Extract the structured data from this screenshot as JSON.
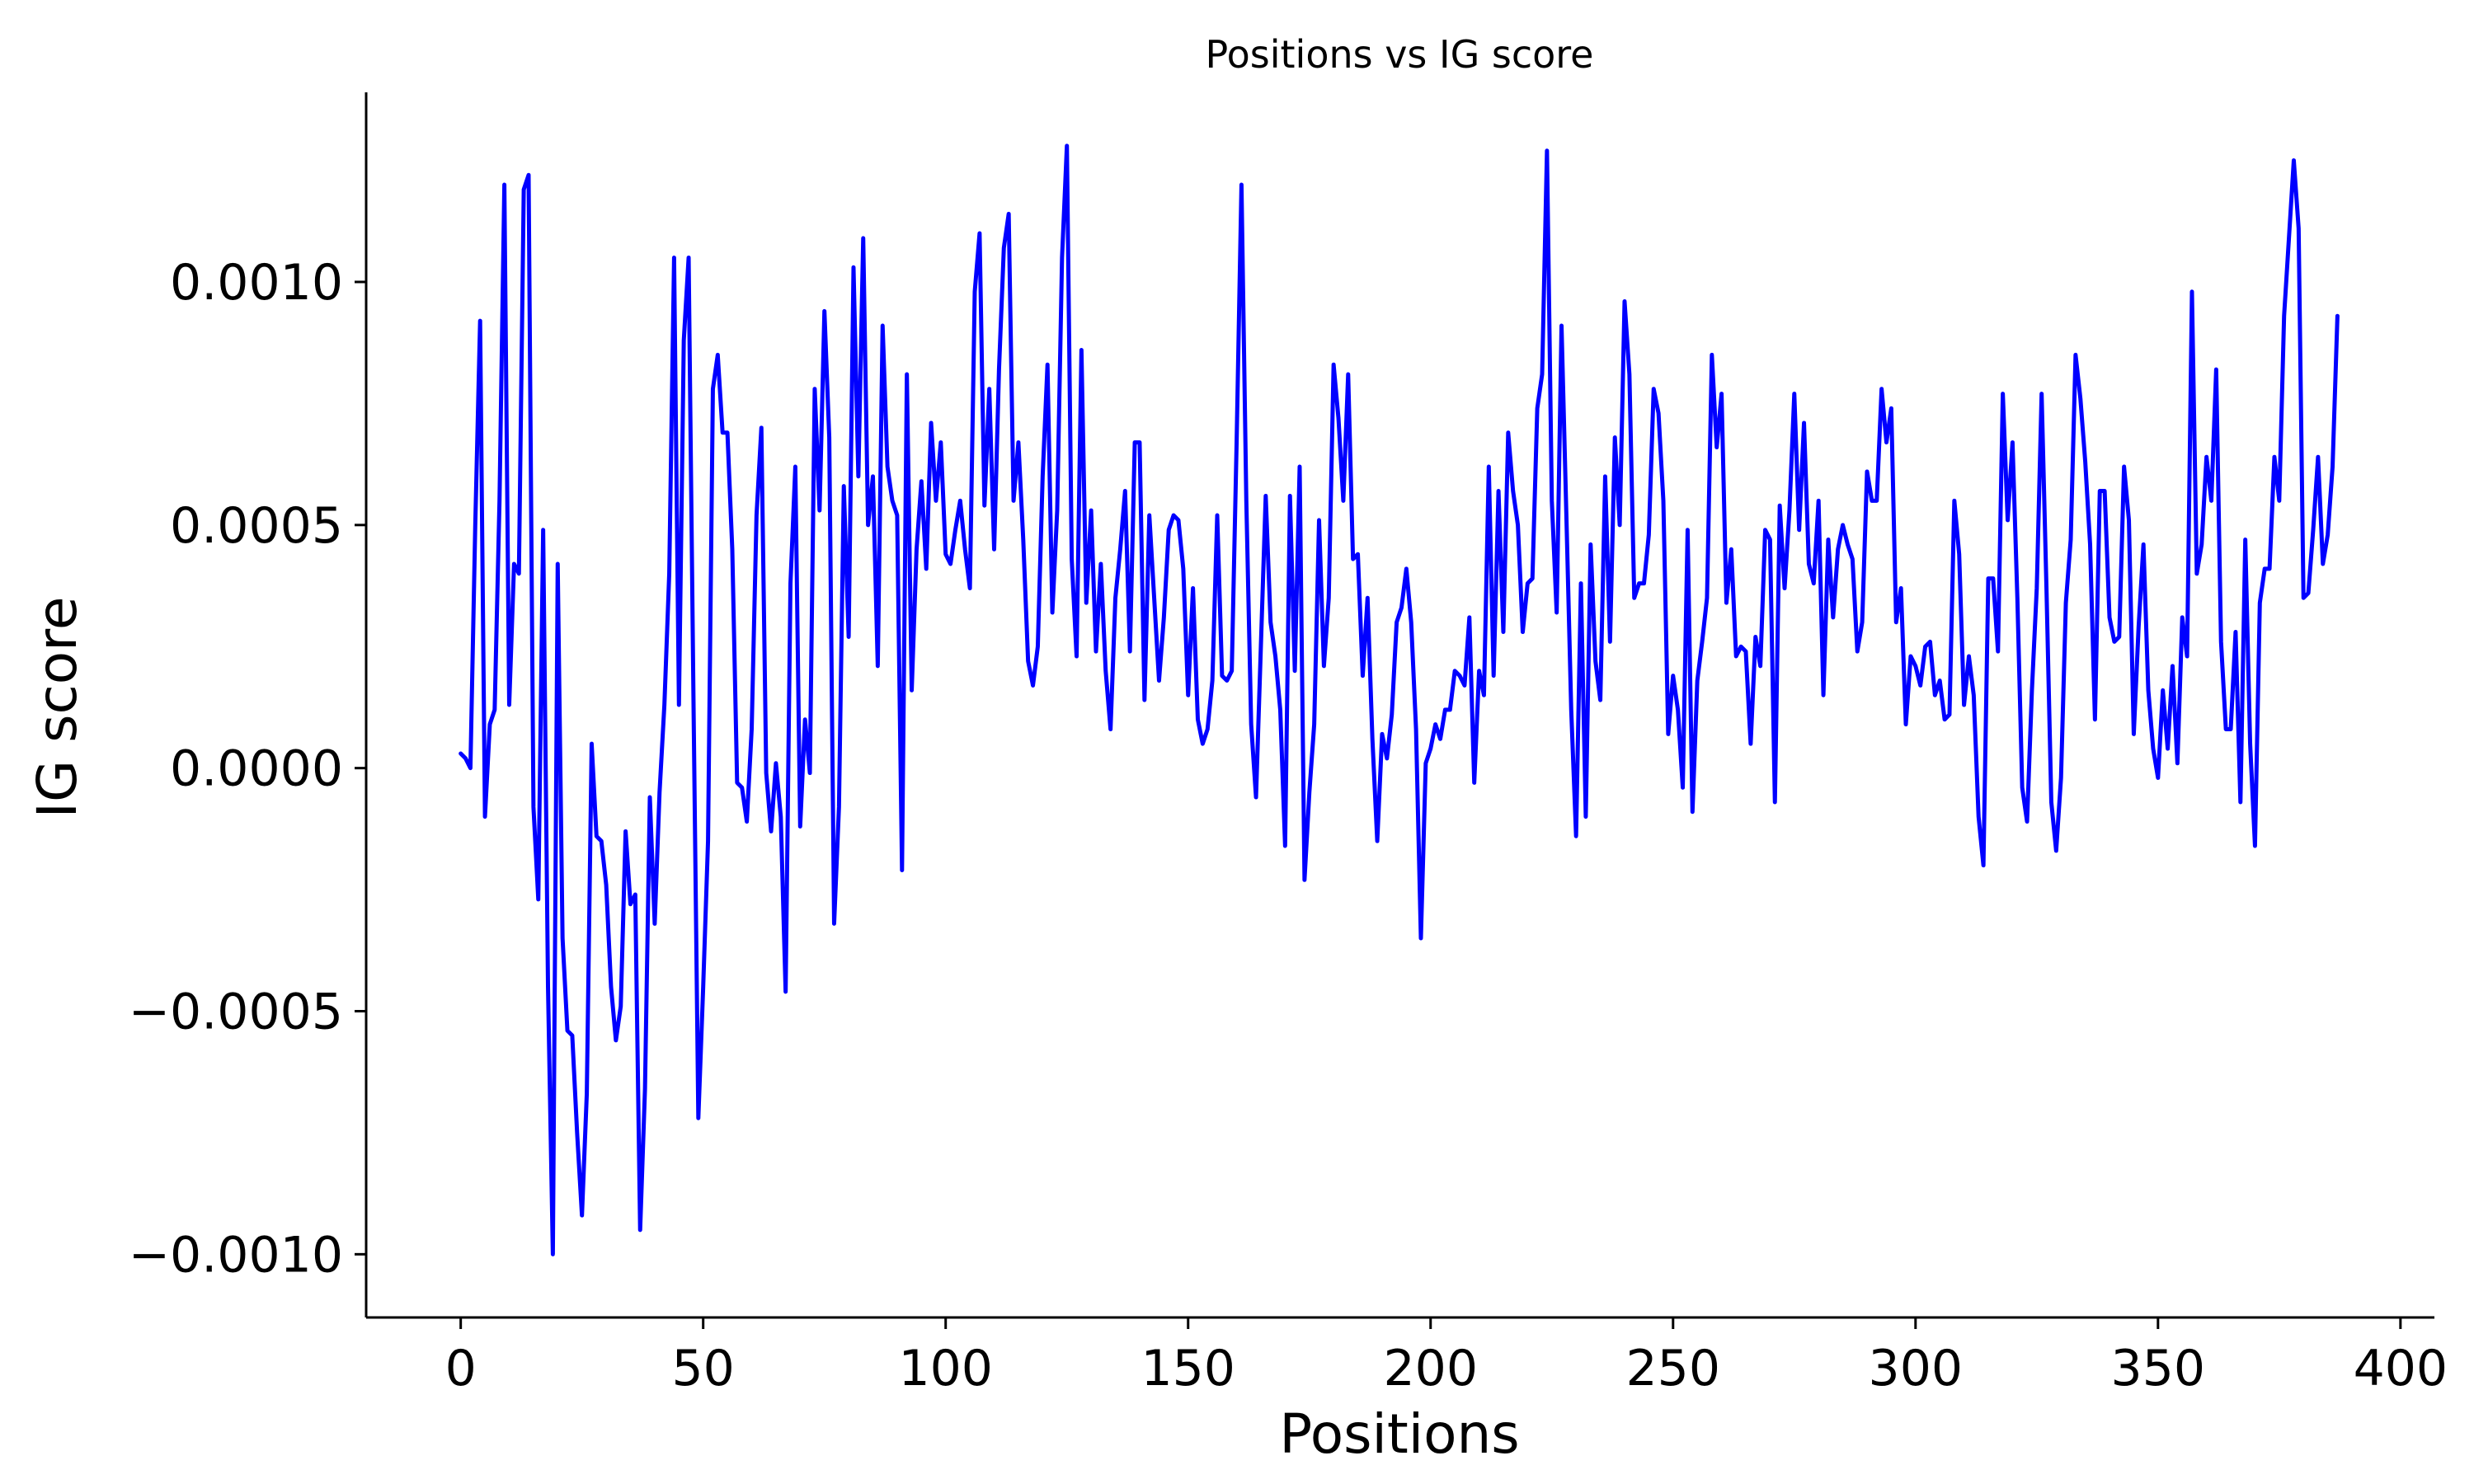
{
  "chart_data": {
    "type": "line",
    "title": "Positions vs IG score",
    "xlabel": "Positions",
    "ylabel": "IG score",
    "xlim": [
      -19.5,
      407
    ],
    "ylim": [
      -0.00113,
      0.00139
    ],
    "grid": false,
    "x_ticks": [
      0,
      50,
      100,
      150,
      200,
      250,
      300,
      350,
      400
    ],
    "x_tick_labels": [
      "0",
      "50",
      "100",
      "150",
      "200",
      "250",
      "300",
      "350",
      "400"
    ],
    "y_ticks": [
      -0.001,
      -0.0005,
      0.0,
      0.0005,
      0.001
    ],
    "y_tick_labels": [
      "−0.0010",
      "−0.0005",
      "0.0000",
      "0.0005",
      "0.0010"
    ],
    "series": [
      {
        "color": "#0000ff",
        "x_start": 0,
        "x_step": 1,
        "values": [
          3e-05,
          2e-05,
          0.0,
          0.0005,
          0.00092,
          -0.0001,
          9e-05,
          0.00012,
          0.00055,
          0.0012,
          0.00013,
          0.00042,
          0.0004,
          0.00119,
          0.00122,
          -8e-05,
          -0.00027,
          0.00049,
          -0.00045,
          -0.001,
          0.00042,
          -0.00035,
          -0.00054,
          -0.00055,
          -0.00075,
          -0.00092,
          -0.00067,
          5e-05,
          -0.00014,
          -0.00015,
          -0.00024,
          -0.00045,
          -0.00056,
          -0.00049,
          -0.00013,
          -0.00028,
          -0.00026,
          -0.00095,
          -0.00066,
          -6e-05,
          -0.00032,
          -5e-05,
          0.00013,
          0.0004,
          0.00105,
          0.00013,
          0.00088,
          0.00105,
          0.00014,
          -0.00072,
          -0.00045,
          -0.00015,
          0.00078,
          0.00085,
          0.00069,
          0.00069,
          0.00045,
          -3e-05,
          -4e-05,
          -0.00011,
          8e-05,
          0.00052,
          0.0007,
          -1e-05,
          -0.00013,
          1e-05,
          -0.0001,
          -0.00046,
          0.00038,
          0.00062,
          -0.00012,
          0.0001,
          -1e-05,
          0.00078,
          0.00053,
          0.00094,
          0.00068,
          -0.00032,
          -8e-05,
          0.00058,
          0.00027,
          0.00103,
          0.0006,
          0.00109,
          0.0005,
          0.0006,
          0.00021,
          0.00091,
          0.00062,
          0.00055,
          0.00052,
          -0.00021,
          0.00081,
          0.00016,
          0.00045,
          0.00059,
          0.00041,
          0.00071,
          0.00055,
          0.00067,
          0.00044,
          0.00042,
          0.00049,
          0.00055,
          0.00045,
          0.00037,
          0.00098,
          0.0011,
          0.00054,
          0.00078,
          0.00045,
          0.00082,
          0.00107,
          0.00114,
          0.00055,
          0.00067,
          0.00047,
          0.00022,
          0.00017,
          0.00025,
          0.0006,
          0.00083,
          0.00032,
          0.00053,
          0.00105,
          0.00128,
          0.00043,
          0.00023,
          0.00086,
          0.00034,
          0.00053,
          0.00024,
          0.00042,
          0.0002,
          8e-05,
          0.00035,
          0.00045,
          0.00057,
          0.00024,
          0.00067,
          0.00067,
          0.00014,
          0.00052,
          0.00035,
          0.00018,
          0.00031,
          0.00049,
          0.00052,
          0.00051,
          0.00041,
          0.00015,
          0.00037,
          0.0001,
          5e-05,
          8e-05,
          0.00018,
          0.00052,
          0.00019,
          0.00018,
          0.0002,
          0.00067,
          0.0012,
          0.00055,
          9e-05,
          -6e-05,
          0.00025,
          0.00056,
          0.0003,
          0.00023,
          0.00012,
          -0.00016,
          0.00056,
          0.0002,
          0.00062,
          -0.00023,
          -5e-05,
          9e-05,
          0.00051,
          0.00021,
          0.00035,
          0.00083,
          0.00072,
          0.00055,
          0.00081,
          0.00043,
          0.00044,
          0.00019,
          0.00035,
          6e-05,
          -0.00015,
          7e-05,
          2e-05,
          0.00011,
          0.0003,
          0.00033,
          0.00041,
          0.0003,
          8e-05,
          -0.00035,
          1e-05,
          4e-05,
          9e-05,
          6e-05,
          0.00012,
          0.00012,
          0.0002,
          0.00019,
          0.00017,
          0.00031,
          -3e-05,
          0.0002,
          0.00015,
          0.00062,
          0.00019,
          0.00057,
          0.00028,
          0.00069,
          0.00057,
          0.0005,
          0.00028,
          0.00038,
          0.00039,
          0.00074,
          0.00081,
          0.00127,
          0.00055,
          0.00032,
          0.00091,
          0.00052,
          0.00012,
          -0.00014,
          0.00038,
          -0.0001,
          0.00046,
          0.00022,
          0.00014,
          0.0006,
          0.00026,
          0.00068,
          0.0005,
          0.00096,
          0.00081,
          0.00035,
          0.00038,
          0.00038,
          0.00048,
          0.00078,
          0.00073,
          0.00055,
          7e-05,
          0.00019,
          0.00012,
          -4e-05,
          0.00049,
          -9e-05,
          0.00018,
          0.00026,
          0.00035,
          0.00085,
          0.00066,
          0.00077,
          0.00034,
          0.00045,
          0.00023,
          0.00025,
          0.00024,
          5e-05,
          0.00027,
          0.00021,
          0.00049,
          0.00047,
          -7e-05,
          0.00054,
          0.00037,
          0.00053,
          0.00077,
          0.00049,
          0.00071,
          0.00042,
          0.00038,
          0.00055,
          0.00015,
          0.00047,
          0.00031,
          0.00045,
          0.0005,
          0.00046,
          0.00043,
          0.00024,
          0.0003,
          0.00061,
          0.00055,
          0.00055,
          0.00078,
          0.00067,
          0.00074,
          0.0003,
          0.00037,
          9e-05,
          0.00023,
          0.00021,
          0.00017,
          0.00025,
          0.00026,
          0.00015,
          0.00018,
          0.0001,
          0.00011,
          0.00055,
          0.00044,
          0.00013,
          0.00023,
          0.00015,
          -0.0001,
          -0.0002,
          0.00039,
          0.00039,
          0.00024,
          0.00077,
          0.00051,
          0.00067,
          0.00035,
          -4e-05,
          -0.00011,
          0.00016,
          0.00037,
          0.00077,
          0.00037,
          -7e-05,
          -0.00017,
          -2e-05,
          0.00034,
          0.00047,
          0.00085,
          0.00076,
          0.00063,
          0.00046,
          0.0001,
          0.00057,
          0.00057,
          0.00031,
          0.00026,
          0.00027,
          0.00062,
          0.00051,
          7e-05,
          0.00029,
          0.00046,
          0.00016,
          4e-05,
          -2e-05,
          0.00016,
          4e-05,
          0.00021,
          1e-05,
          0.00031,
          0.00023,
          0.00098,
          0.0004,
          0.00046,
          0.00064,
          0.00055,
          0.00082,
          0.00026,
          8e-05,
          8e-05,
          0.00028,
          -7e-05,
          0.00047,
          5e-05,
          -0.00016,
          0.00034,
          0.00041,
          0.00041,
          0.00064,
          0.00055,
          0.00093,
          0.00109,
          0.00125,
          0.00111,
          0.00035,
          0.00036,
          0.00049,
          0.00064,
          0.00042,
          0.00048,
          0.00062,
          0.00093
        ]
      }
    ]
  }
}
